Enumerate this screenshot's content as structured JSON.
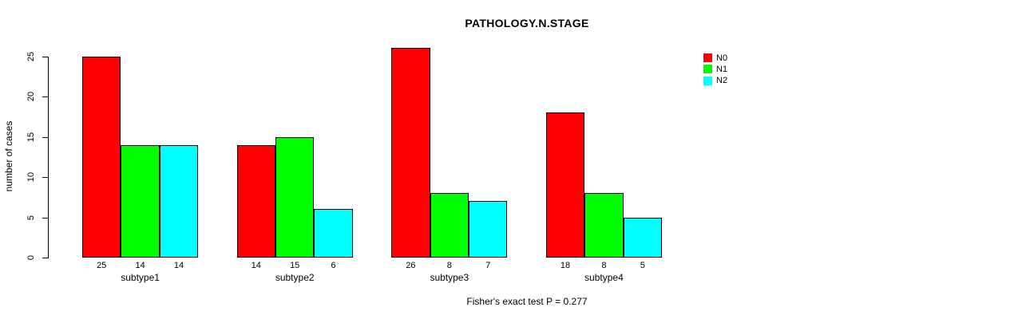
{
  "chart_data": {
    "type": "bar",
    "title": "PATHOLOGY.N.STAGE",
    "ylabel": "number of cases",
    "xlabel": "",
    "categories": [
      "subtype1",
      "subtype2",
      "subtype3",
      "subtype4"
    ],
    "series": [
      {
        "name": "N0",
        "color": "#ff0000",
        "values": [
          25,
          14,
          26,
          18
        ]
      },
      {
        "name": "N1",
        "color": "#00ff00",
        "values": [
          14,
          15,
          8,
          8
        ]
      },
      {
        "name": "N2",
        "color": "#00ffff",
        "values": [
          14,
          6,
          7,
          5
        ]
      }
    ],
    "bar_value_labels": [
      [
        25,
        14,
        14
      ],
      [
        14,
        15,
        6
      ],
      [
        26,
        8,
        7
      ],
      [
        18,
        8,
        5
      ]
    ],
    "ylim": [
      0,
      25
    ],
    "yticks": [
      0,
      5,
      10,
      15,
      20,
      25
    ],
    "grid": false,
    "legend_position": "top-right",
    "annotation": "Fisher's exact test P = 0.277"
  }
}
